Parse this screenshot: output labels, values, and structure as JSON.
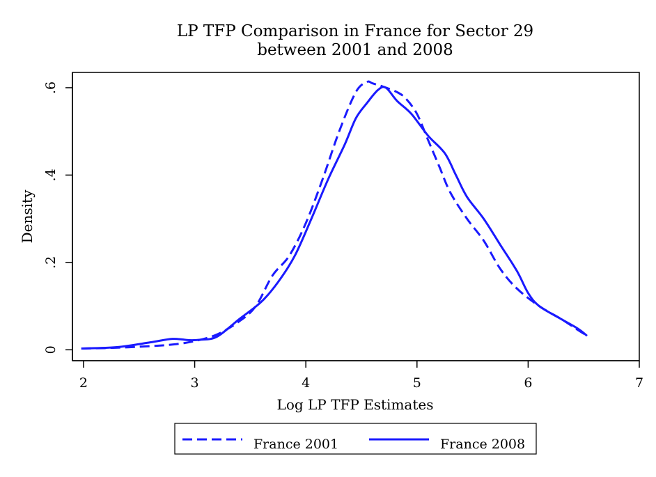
{
  "chart_data": {
    "type": "line",
    "title": "LP TFP Comparison in France for Sector 29",
    "subtitle": "between 2001 and 2008",
    "xlabel": "Log LP TFP Estimates",
    "ylabel": "Density",
    "xlim": [
      1.9,
      7.0
    ],
    "ylim": [
      -0.025,
      0.635
    ],
    "x_ticks": [
      2,
      3,
      4,
      5,
      6,
      7
    ],
    "x_tick_labels": [
      "2",
      "3",
      "4",
      "5",
      "6",
      "7"
    ],
    "y_ticks": [
      0,
      0.2,
      0.4,
      0.6
    ],
    "y_tick_labels": [
      "0",
      ".2",
      ".4",
      ".6"
    ],
    "grid": false,
    "legend_position": "bottom",
    "colors": {
      "series": "#1a1aff",
      "axis": "#000000"
    },
    "series": [
      {
        "name": "France 2001",
        "style": "dashed",
        "points": [
          [
            1.98,
            0.003
          ],
          [
            2.2,
            0.004
          ],
          [
            2.5,
            0.007
          ],
          [
            2.8,
            0.012
          ],
          [
            3.0,
            0.02
          ],
          [
            3.2,
            0.035
          ],
          [
            3.4,
            0.065
          ],
          [
            3.55,
            0.1
          ],
          [
            3.7,
            0.17
          ],
          [
            3.85,
            0.215
          ],
          [
            4.0,
            0.29
          ],
          [
            4.15,
            0.39
          ],
          [
            4.3,
            0.5
          ],
          [
            4.45,
            0.59
          ],
          [
            4.55,
            0.613
          ],
          [
            4.6,
            0.61
          ],
          [
            4.7,
            0.602
          ],
          [
            4.82,
            0.59
          ],
          [
            4.9,
            0.575
          ],
          [
            5.0,
            0.54
          ],
          [
            5.1,
            0.48
          ],
          [
            5.2,
            0.42
          ],
          [
            5.3,
            0.36
          ],
          [
            5.45,
            0.3
          ],
          [
            5.6,
            0.25
          ],
          [
            5.75,
            0.185
          ],
          [
            5.9,
            0.14
          ],
          [
            6.1,
            0.1
          ],
          [
            6.3,
            0.07
          ],
          [
            6.45,
            0.045
          ],
          [
            6.53,
            0.032
          ]
        ]
      },
      {
        "name": "France 2008",
        "style": "solid",
        "points": [
          [
            1.98,
            0.003
          ],
          [
            2.3,
            0.006
          ],
          [
            2.6,
            0.017
          ],
          [
            2.8,
            0.025
          ],
          [
            2.95,
            0.022
          ],
          [
            3.05,
            0.023
          ],
          [
            3.2,
            0.03
          ],
          [
            3.4,
            0.07
          ],
          [
            3.6,
            0.11
          ],
          [
            3.75,
            0.155
          ],
          [
            3.9,
            0.215
          ],
          [
            4.05,
            0.3
          ],
          [
            4.2,
            0.39
          ],
          [
            4.35,
            0.47
          ],
          [
            4.45,
            0.53
          ],
          [
            4.55,
            0.565
          ],
          [
            4.65,
            0.595
          ],
          [
            4.72,
            0.6
          ],
          [
            4.82,
            0.57
          ],
          [
            4.95,
            0.54
          ],
          [
            5.1,
            0.49
          ],
          [
            5.25,
            0.45
          ],
          [
            5.35,
            0.4
          ],
          [
            5.45,
            0.35
          ],
          [
            5.6,
            0.3
          ],
          [
            5.75,
            0.24
          ],
          [
            5.9,
            0.18
          ],
          [
            6.0,
            0.13
          ],
          [
            6.1,
            0.1
          ],
          [
            6.3,
            0.07
          ],
          [
            6.45,
            0.048
          ],
          [
            6.53,
            0.032
          ]
        ]
      }
    ]
  }
}
